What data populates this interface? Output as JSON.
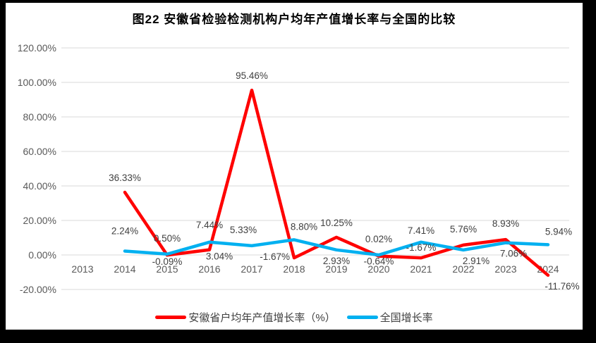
{
  "frame": {
    "background": "#000000",
    "chart_background": "#FFFFFF"
  },
  "chart_data": {
    "type": "line",
    "title": "图22 安徽省检验检测机构户均年产值增长率与全国的比较",
    "categories": [
      "2013",
      "2014",
      "2015",
      "2016",
      "2017",
      "2018",
      "2019",
      "2020",
      "2021",
      "2022",
      "2023",
      "2024"
    ],
    "xlabel": "",
    "ylabel": "",
    "ylim": [
      -20,
      120
    ],
    "grid": true,
    "legend_position": "bottom",
    "colors": {
      "axis_text": "#595959",
      "data_label_text": "#404040",
      "gridline": "#D9D9D9"
    },
    "y_axis": {
      "ticks": [
        {
          "value": 120,
          "label": "120.00%"
        },
        {
          "value": 100,
          "label": "100.00%"
        },
        {
          "value": 80,
          "label": "80.00%"
        },
        {
          "value": 60,
          "label": "60.00%"
        },
        {
          "value": 40,
          "label": "40.00%"
        },
        {
          "value": 20,
          "label": "20.00%"
        },
        {
          "value": 0,
          "label": "0.00%"
        },
        {
          "value": -20,
          "label": "-20.00%"
        }
      ]
    },
    "series": [
      {
        "name": "安徽省户均年产值增长率（%）",
        "color": "#FF0000",
        "points": [
          {
            "category": "2014",
            "value": 36.33,
            "label": "36.33%",
            "pos": "above",
            "dx": 0,
            "dy": -6
          },
          {
            "category": "2015",
            "value": -0.09,
            "label": "-0.09%",
            "pos": "below",
            "dx": 0,
            "dy": -6
          },
          {
            "category": "2016",
            "value": 3.04,
            "label": "3.04%",
            "pos": "below",
            "dx": 14,
            "dy": -6
          },
          {
            "category": "2017",
            "value": 95.46,
            "label": "95.46%",
            "pos": "above",
            "dx": 0,
            "dy": -6
          },
          {
            "category": "2018",
            "value": -1.67,
            "label": "-1.67%",
            "pos": "left",
            "dx": 0,
            "dy": 0
          },
          {
            "category": "2019",
            "value": 10.25,
            "label": "10.25%",
            "pos": "above",
            "dx": 0,
            "dy": -6
          },
          {
            "category": "2020",
            "value": -0.64,
            "label": "-0.64%",
            "pos": "below",
            "dx": 0,
            "dy": -8
          },
          {
            "category": "2021",
            "value": -1.67,
            "label": "-1.67%",
            "pos": "above",
            "dx": 0,
            "dy": 0
          },
          {
            "category": "2022",
            "value": 5.76,
            "label": "5.76%",
            "pos": "above",
            "dx": 0,
            "dy": -8
          },
          {
            "category": "2023",
            "value": 8.93,
            "label": "8.93%",
            "pos": "above",
            "dx": 0,
            "dy": -8
          },
          {
            "category": "2024",
            "value": -11.76,
            "label": "-11.76%",
            "pos": "below",
            "dx": 20,
            "dy": 0
          }
        ]
      },
      {
        "name": "全国增长率",
        "color": "#00B0F0",
        "points": [
          {
            "category": "2014",
            "value": 2.24,
            "label": "2.24%",
            "pos": "above",
            "dx": 0,
            "dy": -14
          },
          {
            "category": "2015",
            "value": 0.5,
            "label": "0.50%",
            "pos": "above",
            "dx": 0,
            "dy": -8
          },
          {
            "category": "2016",
            "value": 7.44,
            "label": "7.44%",
            "pos": "above",
            "dx": 0,
            "dy": -10
          },
          {
            "category": "2017",
            "value": 5.33,
            "label": "5.33%",
            "pos": "above",
            "dx": -12,
            "dy": -8
          },
          {
            "category": "2018",
            "value": 8.8,
            "label": "8.80%",
            "pos": "above",
            "dx": 14,
            "dy": -4
          },
          {
            "category": "2019",
            "value": 2.93,
            "label": "2.93%",
            "pos": "below",
            "dx": 0,
            "dy": 0
          },
          {
            "category": "2020",
            "value": 0.02,
            "label": "0.02%",
            "pos": "above",
            "dx": 0,
            "dy": -8
          },
          {
            "category": "2021",
            "value": 7.41,
            "label": "7.41%",
            "pos": "above",
            "dx": 0,
            "dy": -2
          },
          {
            "category": "2022",
            "value": 2.91,
            "label": "2.91%",
            "pos": "below",
            "dx": 18,
            "dy": 0
          },
          {
            "category": "2023",
            "value": 7.06,
            "label": "7.06%",
            "pos": "below",
            "dx": 11,
            "dy": 0
          },
          {
            "category": "2024",
            "value": 5.94,
            "label": "5.94%",
            "pos": "above",
            "dx": 15,
            "dy": -4
          }
        ]
      }
    ]
  }
}
